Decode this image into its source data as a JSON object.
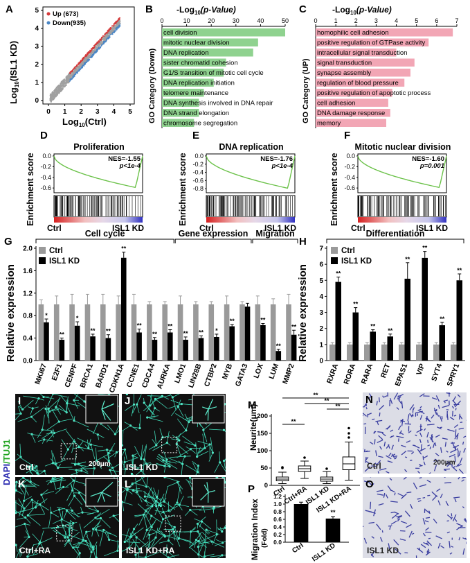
{
  "panels": {
    "A": {
      "label": "A",
      "up_legend": "Up (673)",
      "down_legend": "Down(935)",
      "xlabel": "Log",
      "xlabel_sub": "10",
      "xlabel_tail": "(Ctrl)",
      "ylabel": "Log",
      "ylabel_sub": "10",
      "ylabel_tail": "(ISL1 KD)",
      "ticks": [
        "0",
        "1",
        "2",
        "3",
        "4",
        "5"
      ],
      "colors": {
        "up": "#d43a3a",
        "down": "#4a86c5",
        "other": "#a0a0a0"
      }
    },
    "B": {
      "label": "B",
      "title_pre": "-Log",
      "title_sub": "10",
      "title_tail": "(p-Value)",
      "ylabel": "GO Category (Down)",
      "ticks": [
        "0",
        "10",
        "20",
        "30",
        "40",
        "50"
      ],
      "bar_color": "#8fd28f"
    },
    "C": {
      "label": "C",
      "title_pre": "-Log",
      "title_sub": "10",
      "title_tail": "(p-Value)",
      "ylabel": "GO Category (UP)",
      "ticks": [
        "0",
        "1",
        "2",
        "3",
        "4",
        "5",
        "6",
        "7"
      ],
      "bar_color": "#f2a6b5"
    },
    "D": {
      "label": "D",
      "title": "Proliferation",
      "nes": "NES=-1.55",
      "p": "p<1e-4",
      "yticks": [
        "0.0",
        "-0.2",
        "-0.4",
        "-0.6"
      ],
      "ylabel": "Enrichment score",
      "left": "Ctrl",
      "right": "ISL1 KD"
    },
    "E": {
      "label": "E",
      "title": "DNA replication",
      "nes": "NES=-1.76",
      "p": "p<1e-4",
      "yticks": [
        "0.0",
        "-0.2",
        "-0.4",
        "-0.6",
        "-0.8"
      ],
      "ylabel": "Enrichment score",
      "left": "Ctrl",
      "right": "ISL1 KD"
    },
    "F": {
      "label": "F",
      "title": "Mitotic nuclear division",
      "nes": "NES=-1.60",
      "p": "p=0.001",
      "yticks": [
        "0.0",
        "-0.2",
        "-0.4",
        "-0.6"
      ],
      "ylabel": "Enrichment score",
      "left": "Ctrl",
      "right": "ISL1 KD"
    },
    "G": {
      "label": "G",
      "ylabel": "Relative expression",
      "yticks": [
        "0.0",
        "0.4",
        "0.8",
        "1.2",
        "1.6",
        "2.0"
      ],
      "groups": [
        "Cell cycle",
        "Gene expression",
        "Migration"
      ],
      "legend": [
        "Ctrl",
        "ISL1 KD"
      ]
    },
    "H": {
      "label": "H",
      "ylabel": "Relative expression",
      "yticks": [
        "0",
        "1",
        "2",
        "3",
        "4",
        "5",
        "6",
        "7"
      ],
      "group": "Differentiation",
      "legend": [
        "Ctrl",
        "ISL1 KD"
      ]
    },
    "I": {
      "label": "I",
      "caption": "Ctrl",
      "scale": "200μm"
    },
    "J": {
      "label": "J",
      "caption": "ISL1 KD"
    },
    "K": {
      "label": "K",
      "caption": "Ctrl+RA"
    },
    "L": {
      "label": "L",
      "caption": "ISL1 KD+RA"
    },
    "M": {
      "label": "M",
      "ylabel": "Neurite(μm)",
      "yticks": [
        "0",
        "50",
        "100",
        "150",
        "200"
      ],
      "sig": "**"
    },
    "N": {
      "label": "N",
      "caption": "Ctrl",
      "scale": "200μm"
    },
    "O": {
      "label": "O",
      "caption": "ISL1 KD"
    },
    "P": {
      "label": "P",
      "ylabel": "Migration Index",
      "ylabel2": "(Fold)",
      "yticks": [
        "0.0",
        "0.2",
        "0.4",
        "0.6",
        "0.8",
        "1.0",
        "1.2"
      ],
      "sig": "**"
    },
    "side_label": {
      "dapi": "DAPI",
      "sep": "/",
      "tuj1": "TUJ1"
    }
  },
  "chart_data": [
    {
      "type": "bar",
      "id": "B",
      "categories": [
        "cell division",
        "mitotic nuclear division",
        "DNA replication",
        "sister chromatid cohesion",
        "G1/S transition of mitotic cell cycle",
        "DNA replication initiation",
        "telomere maintenance",
        "DNA synthesis involved in DNA repair",
        "DNA strand elongation",
        "chromosome segregation"
      ],
      "values": [
        50,
        39,
        37,
        26,
        25,
        21,
        17,
        15,
        15,
        13
      ],
      "xlim": [
        0,
        50
      ]
    },
    {
      "type": "bar",
      "id": "C",
      "categories": [
        "homophilic cell adhesion",
        "positive regulation of GTPase activity",
        "intracellular signal transduction",
        "signal transduction",
        "synapse assembly",
        "regulation of blood pressure",
        "positive regulation of apoptotic process",
        "cell adhesion",
        "DNA damage response",
        "memory"
      ],
      "values": [
        6.8,
        5.6,
        4.0,
        4.9,
        4.7,
        4.4,
        3.8,
        3.6,
        3.7,
        3.5
      ],
      "xlim": [
        0,
        7
      ]
    },
    {
      "type": "bar",
      "id": "G",
      "categories": [
        "MKI67",
        "E2F1",
        "CENPF",
        "BRCA1",
        "BARD1",
        "CDKN1A",
        "CCNE1",
        "CDCA4",
        "AURKA",
        "LMO1",
        "LIN28B",
        "CTBP2",
        "MYB",
        "GATA3",
        "LOX",
        "LUM",
        "MMP2"
      ],
      "series": [
        {
          "name": "Ctrl",
          "values": [
            1,
            1,
            1,
            1,
            1,
            1,
            1,
            1,
            1,
            1,
            1,
            1,
            1,
            1,
            1,
            1,
            1
          ],
          "err": [
            0.08,
            0.15,
            0.18,
            0.18,
            0.18,
            0.15,
            0.18,
            0.05,
            0.05,
            0.15,
            0.05,
            0.05,
            0.15,
            0.05,
            0.15,
            0.1,
            0.18
          ]
        },
        {
          "name": "ISL1 KD",
          "values": [
            0.68,
            0.37,
            0.62,
            0.43,
            0.4,
            1.83,
            0.5,
            0.37,
            0.5,
            0.37,
            0.4,
            0.42,
            0.61,
            0.96,
            0.63,
            0.17,
            0.46
          ],
          "err": [
            0.06,
            0.03,
            0.07,
            0.04,
            0.06,
            0.1,
            0.06,
            0.04,
            0.05,
            0.05,
            0.04,
            0.05,
            0.03,
            0.06,
            0.03,
            0.03,
            0.08
          ]
        }
      ],
      "sig": [
        "*",
        "**",
        "*",
        "**",
        "**",
        "**",
        "**",
        "**",
        "**",
        "**",
        "**",
        "*",
        "**",
        "",
        "**",
        "**",
        "**"
      ],
      "ylim": [
        0,
        2.0
      ]
    },
    {
      "type": "bar",
      "id": "H",
      "categories": [
        "RXRA",
        "RORA",
        "RARA",
        "RET",
        "EPAS1",
        "VIP",
        "SYT4",
        "SPRY1"
      ],
      "series": [
        {
          "name": "Ctrl",
          "values": [
            1,
            1,
            1,
            1,
            1,
            1,
            1,
            1
          ],
          "err": [
            0.12,
            0.12,
            0.12,
            0.12,
            0.12,
            0.12,
            0.12,
            0.12
          ]
        },
        {
          "name": "ISL1 KD",
          "values": [
            4.9,
            3.0,
            1.8,
            1.5,
            5.1,
            6.4,
            2.2,
            5.0
          ],
          "err": [
            0.3,
            0.3,
            0.12,
            0.15,
            1.0,
            0.4,
            0.18,
            0.4
          ]
        }
      ],
      "sig": [
        "**",
        "**",
        "**",
        "**",
        "**",
        "**",
        "**",
        "**"
      ],
      "ylim": [
        0,
        7
      ]
    },
    {
      "type": "bar",
      "id": "M",
      "categories": [
        "Ctrl",
        "Ctrl+RA",
        "ISL1 KD",
        "ISL1 KD+RA"
      ],
      "median": [
        18,
        48,
        18,
        62
      ],
      "q1": [
        13,
        40,
        12,
        45
      ],
      "q3": [
        24,
        56,
        24,
        82
      ],
      "whisker_low": [
        5,
        20,
        5,
        15
      ],
      "whisker_high": [
        38,
        70,
        40,
        125
      ],
      "outliers": [
        [
          50,
          52
        ],
        [
          80
        ],
        [
          48
        ],
        [
          138,
          150,
          165
        ]
      ],
      "ylim": [
        0,
        200
      ]
    },
    {
      "type": "bar",
      "id": "P",
      "categories": [
        "Ctrl",
        "ISL1 KD"
      ],
      "values": [
        1.0,
        0.62
      ],
      "err": [
        0.05,
        0.05
      ],
      "ylim": [
        0,
        1.2
      ]
    }
  ]
}
